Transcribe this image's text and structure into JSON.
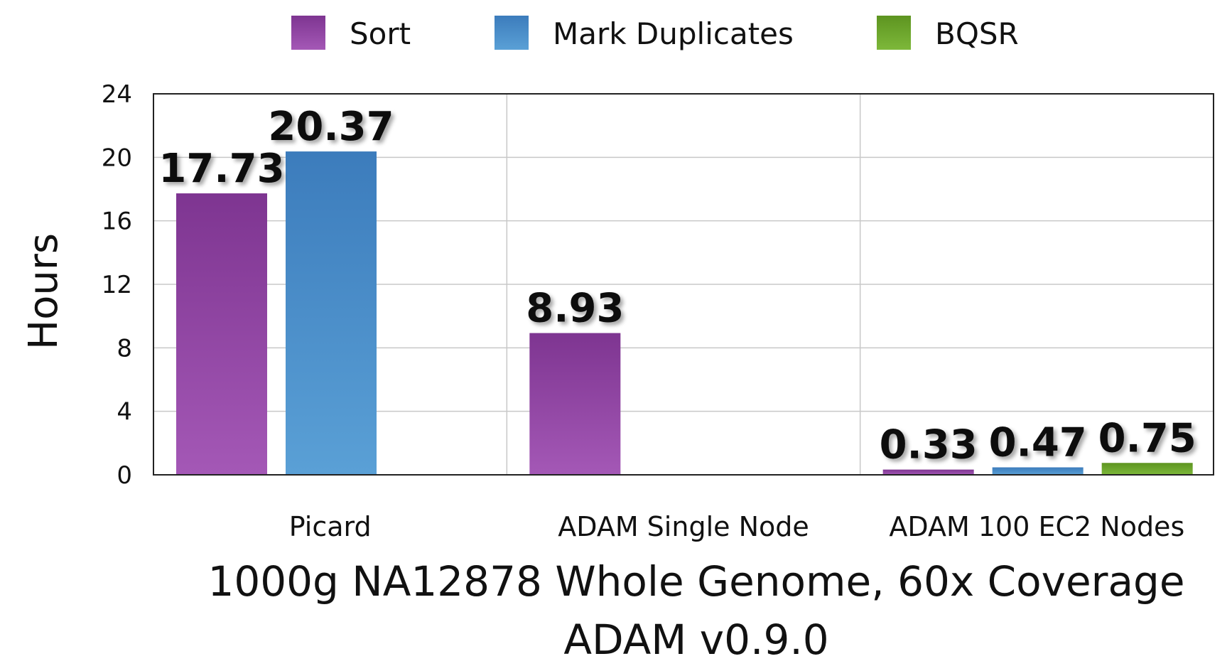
{
  "chart_data": {
    "type": "bar",
    "categories": [
      "Picard",
      "ADAM Single Node",
      "ADAM 100 EC2 Nodes"
    ],
    "series": [
      {
        "name": "Sort",
        "color": "#9a4dab",
        "values": [
          17.73,
          8.93,
          0.33
        ],
        "labels": [
          "17.73",
          "8.93",
          "0.33"
        ]
      },
      {
        "name": "Mark Duplicates",
        "color": "#4a8ec9",
        "values": [
          20.37,
          null,
          0.47
        ],
        "labels": [
          "20.37",
          "",
          "0.47"
        ]
      },
      {
        "name": "BQSR",
        "color": "#6fa52a",
        "values": [
          null,
          null,
          0.75
        ],
        "labels": [
          "",
          "",
          "0.75"
        ]
      }
    ],
    "ylabel": "Hours",
    "xlabel": "1000g NA12878 Whole Genome, 60x Coverage",
    "xlabel2": "ADAM v0.9.0",
    "ylim": [
      0,
      24
    ],
    "yticks": [
      "0",
      "4",
      "8",
      "12",
      "16",
      "20",
      "24"
    ],
    "grid": true,
    "legend": "top"
  }
}
